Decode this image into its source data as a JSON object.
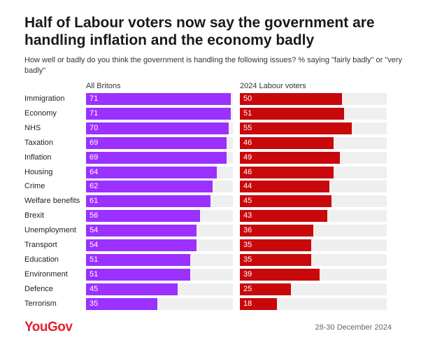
{
  "title": "Half of Labour voters now say the government are handling inflation and the economy badly",
  "subtitle": "How well or badly do you think the government is handling the following issues? % saying \"fairly badly\" or \"very badly\"",
  "brand": "YouGov",
  "date": "28-30 December 2024",
  "colors": {
    "all_britons": "#9b30ff",
    "labour_voters": "#c8080b",
    "track": "#efefef",
    "brand": "#e5202e"
  },
  "chart_data": {
    "type": "bar",
    "orientation": "horizontal",
    "categories": [
      "Immigration",
      "Economy",
      "NHS",
      "Taxation",
      "Inflation",
      "Housing",
      "Crime",
      "Welfare benefits",
      "Brexit",
      "Unemployment",
      "Transport",
      "Education",
      "Environment",
      "Defence",
      "Terrorism"
    ],
    "series": [
      {
        "name": "All Britons",
        "values": [
          71,
          71,
          70,
          69,
          69,
          64,
          62,
          61,
          56,
          54,
          54,
          51,
          51,
          45,
          35
        ]
      },
      {
        "name": "2024 Labour voters",
        "values": [
          50,
          51,
          55,
          46,
          49,
          46,
          44,
          45,
          43,
          36,
          35,
          35,
          39,
          25,
          18
        ]
      }
    ],
    "xlim": [
      0,
      72
    ],
    "data_labels": true,
    "layout": "small-multiples"
  }
}
